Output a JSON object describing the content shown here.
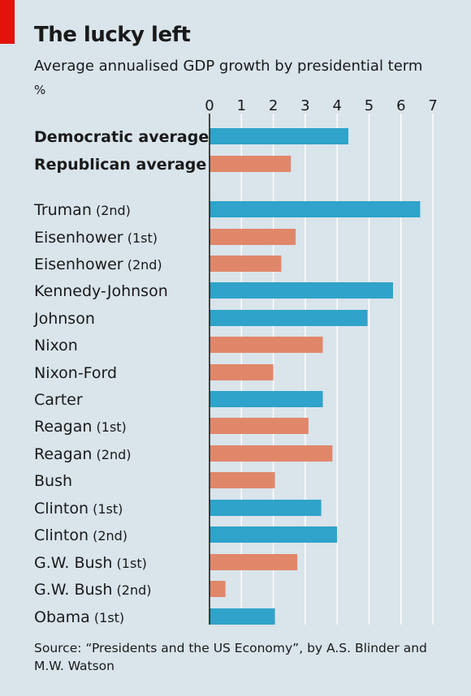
{
  "title": "The lucky left",
  "subtitle": "Average annualised GDP growth by presidential term",
  "unit": "%",
  "source": "Source: “Presidents and the US Economy”, by A.S. Blinder and M.W. Watson",
  "colors": {
    "democratic": "#2fa3c9",
    "republican": "#e0876a",
    "background": "#d9e4eb",
    "brand_red": "#e3120b"
  },
  "chart_data": {
    "type": "bar",
    "orientation": "horizontal",
    "title": "The lucky left",
    "subtitle": "Average annualised GDP growth by presidential term",
    "xlabel": "%",
    "xlim": [
      0,
      7
    ],
    "xticks": [
      0,
      1,
      2,
      3,
      4,
      5,
      6,
      7
    ],
    "grid": true,
    "bars": [
      {
        "name": "Democratic average",
        "term": "",
        "party": "democratic",
        "value": 4.35,
        "bold": true
      },
      {
        "name": "Republican average",
        "term": "",
        "party": "republican",
        "value": 2.55,
        "bold": true
      },
      {
        "name": "Truman",
        "term": "(2nd)",
        "party": "democratic",
        "value": 6.6
      },
      {
        "name": "Eisenhower",
        "term": "(1st)",
        "party": "republican",
        "value": 2.7
      },
      {
        "name": "Eisenhower",
        "term": "(2nd)",
        "party": "republican",
        "value": 2.25
      },
      {
        "name": "Kennedy-Johnson",
        "term": "",
        "party": "democratic",
        "value": 5.75
      },
      {
        "name": "Johnson",
        "term": "",
        "party": "democratic",
        "value": 4.95
      },
      {
        "name": "Nixon",
        "term": "",
        "party": "republican",
        "value": 3.55
      },
      {
        "name": "Nixon-Ford",
        "term": "",
        "party": "republican",
        "value": 2.0
      },
      {
        "name": "Carter",
        "term": "",
        "party": "democratic",
        "value": 3.55
      },
      {
        "name": "Reagan",
        "term": "(1st)",
        "party": "republican",
        "value": 3.1
      },
      {
        "name": "Reagan",
        "term": "(2nd)",
        "party": "republican",
        "value": 3.85
      },
      {
        "name": "Bush",
        "term": "",
        "party": "republican",
        "value": 2.05
      },
      {
        "name": "Clinton",
        "term": "(1st)",
        "party": "democratic",
        "value": 3.5
      },
      {
        "name": "Clinton",
        "term": "(2nd)",
        "party": "democratic",
        "value": 4.0
      },
      {
        "name": "G.W. Bush",
        "term": "(1st)",
        "party": "republican",
        "value": 2.75
      },
      {
        "name": "G.W. Bush",
        "term": "(2nd)",
        "party": "republican",
        "value": 0.5
      },
      {
        "name": "Obama",
        "term": "(1st)",
        "party": "democratic",
        "value": 2.05
      }
    ]
  }
}
